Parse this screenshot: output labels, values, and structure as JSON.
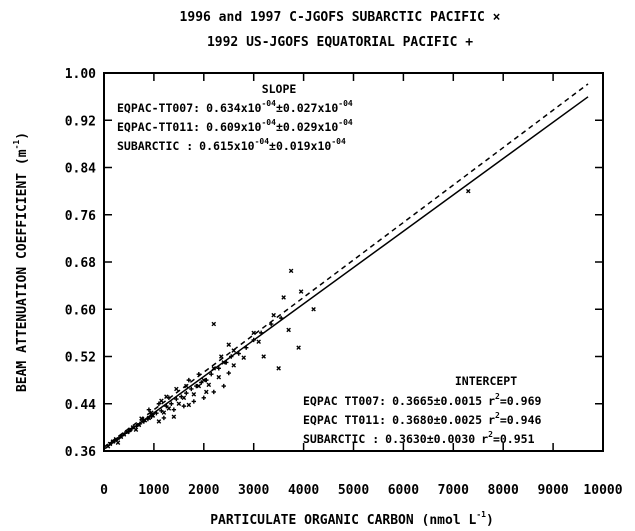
{
  "chart_data": {
    "type": "scatter",
    "title_line1": "1996 and 1997 C-JGOFS SUBARCTIC PACIFIC ×",
    "title_line2": "1992 US-JGOFS EQUATORIAL PACIFIC +",
    "xlabel": "PARTICULATE ORGANIC CARBON (nmol L",
    "xlabel_sup": "-1",
    "xlabel_end": ")",
    "ylabel": "BEAM ATTENUATION COEFFICIENT (m",
    "ylabel_sup": "-1",
    "ylabel_end": ")",
    "xlim": [
      0,
      10000
    ],
    "ylim": [
      0.36,
      1.0
    ],
    "x_ticks": [
      0,
      1000,
      2000,
      3000,
      4000,
      5000,
      6000,
      7000,
      8000,
      9000,
      10000
    ],
    "y_ticks": [
      "0.36",
      "0.44",
      "0.52",
      "0.60",
      "0.68",
      "0.76",
      "0.84",
      "0.92",
      "1.00"
    ],
    "grid": false,
    "slope_block": {
      "header": "SLOPE",
      "rows": [
        {
          "label": "EQPAC-TT007:",
          "v1": "0.634x10",
          "e1": "-04",
          "pm": "±0.027x10",
          "e2": "-04"
        },
        {
          "label": "EQPAC-TT011:",
          "v1": "0.609x10",
          "e1": "-04",
          "pm": "±0.029x10",
          "e2": "-04"
        },
        {
          "label": "SUBARCTIC   :",
          "v1": "0.615x10",
          "e1": "-04",
          "pm": "±0.019x10",
          "e2": "-04"
        }
      ]
    },
    "intercept_block": {
      "header": "INTERCEPT",
      "rows": [
        {
          "label": "EQPAC TT007:",
          "value": "0.3665±0.0015",
          "r": "r",
          "rsup": "2",
          "rval": "=0.969"
        },
        {
          "label": "EQPAC TT011:",
          "value": "0.3680±0.0025",
          "r": "r",
          "rsup": "2",
          "rval": "=0.946"
        },
        {
          "label": "SUBARCTIC   :",
          "value": "0.3630±0.0030",
          "r": "r",
          "rsup": "2",
          "rval": "=0.951"
        }
      ]
    },
    "lines": [
      {
        "style": "solid",
        "x": [
          0,
          9700
        ],
        "y": [
          0.3631,
          0.9597
        ]
      },
      {
        "style": "dashed",
        "x": [
          0,
          9700
        ],
        "y": [
          0.3665,
          0.9815
        ]
      }
    ],
    "series": [
      {
        "marker": "cross",
        "points": [
          [
            150,
            0.374
          ],
          [
            220,
            0.378
          ],
          [
            300,
            0.382
          ],
          [
            360,
            0.386
          ],
          [
            420,
            0.39
          ],
          [
            500,
            0.393
          ],
          [
            560,
            0.398
          ],
          [
            650,
            0.402
          ],
          [
            720,
            0.406
          ],
          [
            800,
            0.41
          ],
          [
            880,
            0.414
          ],
          [
            950,
            0.418
          ],
          [
            1050,
            0.424
          ],
          [
            1150,
            0.428
          ],
          [
            1250,
            0.436
          ],
          [
            1350,
            0.44
          ],
          [
            1450,
            0.448
          ],
          [
            1550,
            0.452
          ],
          [
            1650,
            0.458
          ],
          [
            1750,
            0.465
          ],
          [
            1850,
            0.47
          ],
          [
            1950,
            0.476
          ],
          [
            2050,
            0.48
          ],
          [
            2150,
            0.49
          ],
          [
            2300,
            0.5
          ],
          [
            2450,
            0.51
          ],
          [
            2550,
            0.52
          ],
          [
            2700,
            0.525
          ],
          [
            2850,
            0.535
          ],
          [
            3000,
            0.548
          ],
          [
            3150,
            0.56
          ],
          [
            3350,
            0.575
          ],
          [
            3550,
            0.585
          ],
          [
            1200,
            0.416
          ],
          [
            1400,
            0.43
          ],
          [
            1600,
            0.436
          ],
          [
            1800,
            0.444
          ],
          [
            2000,
            0.45
          ],
          [
            2200,
            0.46
          ],
          [
            2400,
            0.47
          ],
          [
            900,
            0.43
          ],
          [
            1100,
            0.44
          ],
          [
            1300,
            0.45
          ],
          [
            1700,
            0.48
          ],
          [
            1900,
            0.49
          ],
          [
            2500,
            0.492
          ]
        ]
      },
      {
        "marker": "x",
        "points": [
          [
            80,
            0.368
          ],
          [
            120,
            0.372
          ],
          [
            180,
            0.376
          ],
          [
            240,
            0.38
          ],
          [
            280,
            0.374
          ],
          [
            340,
            0.384
          ],
          [
            400,
            0.388
          ],
          [
            460,
            0.392
          ],
          [
            520,
            0.396
          ],
          [
            580,
            0.4
          ],
          [
            640,
            0.396
          ],
          [
            700,
            0.404
          ],
          [
            760,
            0.41
          ],
          [
            820,
            0.412
          ],
          [
            900,
            0.416
          ],
          [
            980,
            0.42
          ],
          [
            1100,
            0.41
          ],
          [
            1200,
            0.425
          ],
          [
            1300,
            0.432
          ],
          [
            1400,
            0.418
          ],
          [
            1500,
            0.44
          ],
          [
            1600,
            0.45
          ],
          [
            1700,
            0.438
          ],
          [
            1800,
            0.456
          ],
          [
            1900,
            0.47
          ],
          [
            2000,
            0.48
          ],
          [
            2100,
            0.472
          ],
          [
            2200,
            0.5
          ],
          [
            2300,
            0.485
          ],
          [
            2400,
            0.51
          ],
          [
            2600,
            0.505
          ],
          [
            2800,
            0.518
          ],
          [
            3200,
            0.52
          ],
          [
            3500,
            0.5
          ],
          [
            3700,
            0.565
          ],
          [
            3900,
            0.535
          ],
          [
            4200,
            0.6
          ],
          [
            2500,
            0.54
          ],
          [
            2200,
            0.575
          ],
          [
            3100,
            0.545
          ],
          [
            3000,
            0.56
          ],
          [
            3400,
            0.59
          ],
          [
            3600,
            0.62
          ],
          [
            3750,
            0.665
          ],
          [
            3950,
            0.63
          ],
          [
            7300,
            0.8
          ],
          [
            2600,
            0.53
          ],
          [
            2350,
            0.52
          ],
          [
            1650,
            0.47
          ],
          [
            2050,
            0.46
          ],
          [
            1450,
            0.465
          ],
          [
            1250,
            0.452
          ],
          [
            1150,
            0.445
          ],
          [
            950,
            0.425
          ],
          [
            750,
            0.415
          ]
        ]
      }
    ]
  }
}
